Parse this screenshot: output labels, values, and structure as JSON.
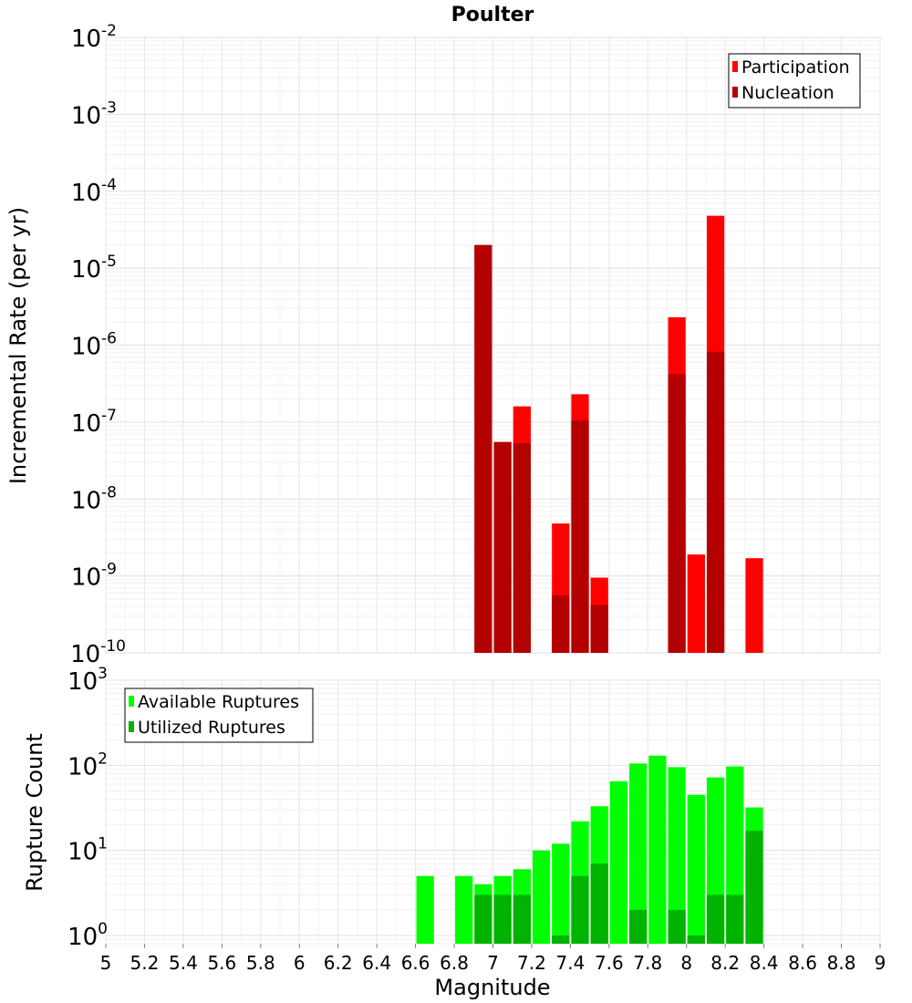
{
  "chart_data": [
    {
      "type": "bar",
      "title": "Poulter",
      "ylabel": "Incremental Rate (per yr)",
      "y_scale": "log",
      "ylim": [
        1e-10,
        0.01
      ],
      "xlim": [
        5,
        9
      ],
      "y_ticks": [
        {
          "base": "10",
          "exp": "-10"
        },
        {
          "base": "10",
          "exp": "-9"
        },
        {
          "base": "10",
          "exp": "-8"
        },
        {
          "base": "10",
          "exp": "-7"
        },
        {
          "base": "10",
          "exp": "-6"
        },
        {
          "base": "10",
          "exp": "-5"
        },
        {
          "base": "10",
          "exp": "-4"
        },
        {
          "base": "10",
          "exp": "-3"
        },
        {
          "base": "10",
          "exp": "-2"
        }
      ],
      "legend_position": "top-right",
      "series": [
        {
          "name": "Participation",
          "color": "#ff0000",
          "points": [
            {
              "x": 6.95,
              "y": 2e-05
            },
            {
              "x": 7.05,
              "y": 5.5e-08
            },
            {
              "x": 7.15,
              "y": 1.6e-07
            },
            {
              "x": 7.35,
              "y": 4.8e-09
            },
            {
              "x": 7.45,
              "y": 2.3e-07
            },
            {
              "x": 7.55,
              "y": 9.5e-10
            },
            {
              "x": 7.95,
              "y": 2.3e-06
            },
            {
              "x": 8.05,
              "y": 1.9e-09
            },
            {
              "x": 8.15,
              "y": 4.8e-05
            },
            {
              "x": 8.35,
              "y": 1.7e-09
            }
          ]
        },
        {
          "name": "Nucleation",
          "color": "#b30000",
          "points": [
            {
              "x": 6.95,
              "y": 2e-05
            },
            {
              "x": 7.05,
              "y": 5.5e-08
            },
            {
              "x": 7.15,
              "y": 5.3e-08
            },
            {
              "x": 7.35,
              "y": 5.6e-10
            },
            {
              "x": 7.45,
              "y": 1.05e-07
            },
            {
              "x": 7.55,
              "y": 4.2e-10
            },
            {
              "x": 7.95,
              "y": 4.2e-07
            },
            {
              "x": 8.15,
              "y": 8.2e-07
            }
          ]
        }
      ]
    },
    {
      "type": "bar",
      "xlabel": "Magnitude",
      "ylabel": "Rupture Count",
      "y_scale": "log",
      "ylim": [
        0.8,
        1000
      ],
      "xlim": [
        5,
        9
      ],
      "y_ticks": [
        {
          "value": 1,
          "base": "10",
          "exp": "0"
        },
        {
          "value": 10,
          "base": "10",
          "exp": "1"
        },
        {
          "value": 100,
          "base": "10",
          "exp": "2"
        },
        {
          "value": 1000,
          "base": "10",
          "exp": "3"
        }
      ],
      "x_ticks": [
        "5",
        "5.2",
        "5.4",
        "5.6",
        "5.8",
        "6",
        "6.2",
        "6.4",
        "6.6",
        "6.8",
        "7",
        "7.2",
        "7.4",
        "7.6",
        "7.8",
        "8",
        "8.2",
        "8.4",
        "8.6",
        "8.8",
        "9"
      ],
      "legend_position": "top-left",
      "series": [
        {
          "name": "Available Ruptures",
          "color": "#00ff00",
          "points": [
            {
              "x": 6.65,
              "y": 5
            },
            {
              "x": 6.85,
              "y": 5
            },
            {
              "x": 6.95,
              "y": 4
            },
            {
              "x": 7.05,
              "y": 5
            },
            {
              "x": 7.15,
              "y": 6
            },
            {
              "x": 7.25,
              "y": 10
            },
            {
              "x": 7.35,
              "y": 12
            },
            {
              "x": 7.45,
              "y": 22
            },
            {
              "x": 7.55,
              "y": 33
            },
            {
              "x": 7.65,
              "y": 65
            },
            {
              "x": 7.75,
              "y": 105
            },
            {
              "x": 7.85,
              "y": 130
            },
            {
              "x": 7.95,
              "y": 95
            },
            {
              "x": 8.05,
              "y": 45
            },
            {
              "x": 8.15,
              "y": 72
            },
            {
              "x": 8.25,
              "y": 97
            },
            {
              "x": 8.35,
              "y": 32
            }
          ]
        },
        {
          "name": "Utilized Ruptures",
          "color": "#00b300",
          "points": [
            {
              "x": 6.95,
              "y": 3
            },
            {
              "x": 7.05,
              "y": 3
            },
            {
              "x": 7.15,
              "y": 3
            },
            {
              "x": 7.35,
              "y": 1
            },
            {
              "x": 7.45,
              "y": 5
            },
            {
              "x": 7.55,
              "y": 7
            },
            {
              "x": 7.75,
              "y": 2
            },
            {
              "x": 7.95,
              "y": 2
            },
            {
              "x": 8.05,
              "y": 1
            },
            {
              "x": 8.15,
              "y": 3
            },
            {
              "x": 8.25,
              "y": 3
            },
            {
              "x": 8.35,
              "y": 17
            }
          ]
        }
      ]
    }
  ]
}
